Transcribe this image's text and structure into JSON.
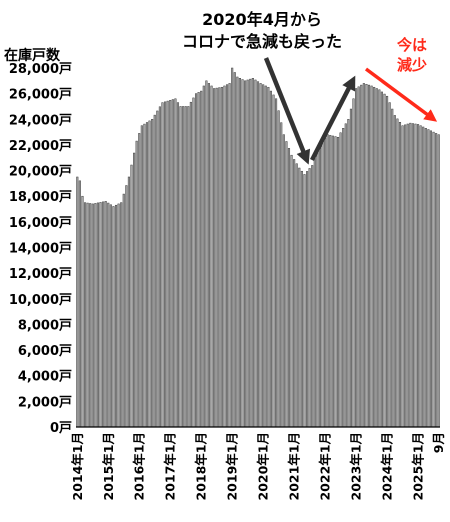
{
  "chart_data": {
    "type": "bar",
    "ylabel": "在庫戸数",
    "ylim": [
      0,
      28000
    ],
    "yticks": [
      0,
      2000,
      4000,
      6000,
      8000,
      10000,
      12000,
      14000,
      16000,
      18000,
      20000,
      22000,
      24000,
      26000,
      28000
    ],
    "ytick_labels": [
      "0戸",
      "2,000戸",
      "4,000戸",
      "6,000戸",
      "8,000戸",
      "10,000戸",
      "12,000戸",
      "14,000戸",
      "16,000戸",
      "18,000戸",
      "20,000戸",
      "22,000戸",
      "24,000戸",
      "26,000戸",
      "28,000戸"
    ],
    "x_start": "2014-01",
    "x_end": "2025-09",
    "xtick_labels": [
      "2014年1月",
      "2015年1月",
      "2016年1月",
      "2017年1月",
      "2018年1月",
      "2019年1月",
      "2020年1月",
      "2021年1月",
      "2022年1月",
      "2023年1月",
      "2024年1月",
      "2025年1月",
      "9月"
    ],
    "anchors": [
      [
        "2014-01",
        19500
      ],
      [
        "2014-02",
        19200
      ],
      [
        "2014-03",
        18000
      ],
      [
        "2014-04",
        17500
      ],
      [
        "2014-07",
        17400
      ],
      [
        "2014-12",
        17600
      ],
      [
        "2015-03",
        17200
      ],
      [
        "2015-06",
        17500
      ],
      [
        "2015-09",
        19500
      ],
      [
        "2015-12",
        22300
      ],
      [
        "2016-02",
        23500
      ],
      [
        "2016-06",
        24000
      ],
      [
        "2016-10",
        25300
      ],
      [
        "2017-03",
        25600
      ],
      [
        "2017-05",
        25000
      ],
      [
        "2017-08",
        25000
      ],
      [
        "2017-11",
        26000
      ],
      [
        "2018-01",
        26200
      ],
      [
        "2018-03",
        27000
      ],
      [
        "2018-06",
        26400
      ],
      [
        "2018-09",
        26500
      ],
      [
        "2018-12",
        26800
      ],
      [
        "2019-01",
        28000
      ],
      [
        "2019-03",
        27300
      ],
      [
        "2019-06",
        27000
      ],
      [
        "2019-09",
        27200
      ],
      [
        "2019-12",
        26800
      ],
      [
        "2020-03",
        26500
      ],
      [
        "2020-06",
        25600
      ],
      [
        "2020-09",
        22800
      ],
      [
        "2020-12",
        21200
      ],
      [
        "2021-03",
        20200
      ],
      [
        "2021-05",
        19700
      ],
      [
        "2021-08",
        20400
      ],
      [
        "2021-11",
        22000
      ],
      [
        "2022-02",
        22800
      ],
      [
        "2022-06",
        22600
      ],
      [
        "2022-10",
        24000
      ],
      [
        "2023-01",
        26400
      ],
      [
        "2023-04",
        26800
      ],
      [
        "2023-07",
        26600
      ],
      [
        "2023-10",
        26300
      ],
      [
        "2024-01",
        25800
      ],
      [
        "2024-04",
        24300
      ],
      [
        "2024-07",
        23500
      ],
      [
        "2024-10",
        23700
      ],
      [
        "2025-01",
        23600
      ],
      [
        "2025-04",
        23300
      ],
      [
        "2025-07",
        23000
      ],
      [
        "2025-09",
        22800
      ]
    ]
  },
  "annotations": {
    "covid_line1": "2020年4月から",
    "covid_line2": "コロナで急減も戻った",
    "now_line1": "今は",
    "now_line2": "減少"
  },
  "colors": {
    "bar_fill": "#a8a8a8",
    "bar_edge": "#3a3a3a",
    "arrow_dark": "#333333",
    "arrow_red": "#ff2a1a"
  }
}
